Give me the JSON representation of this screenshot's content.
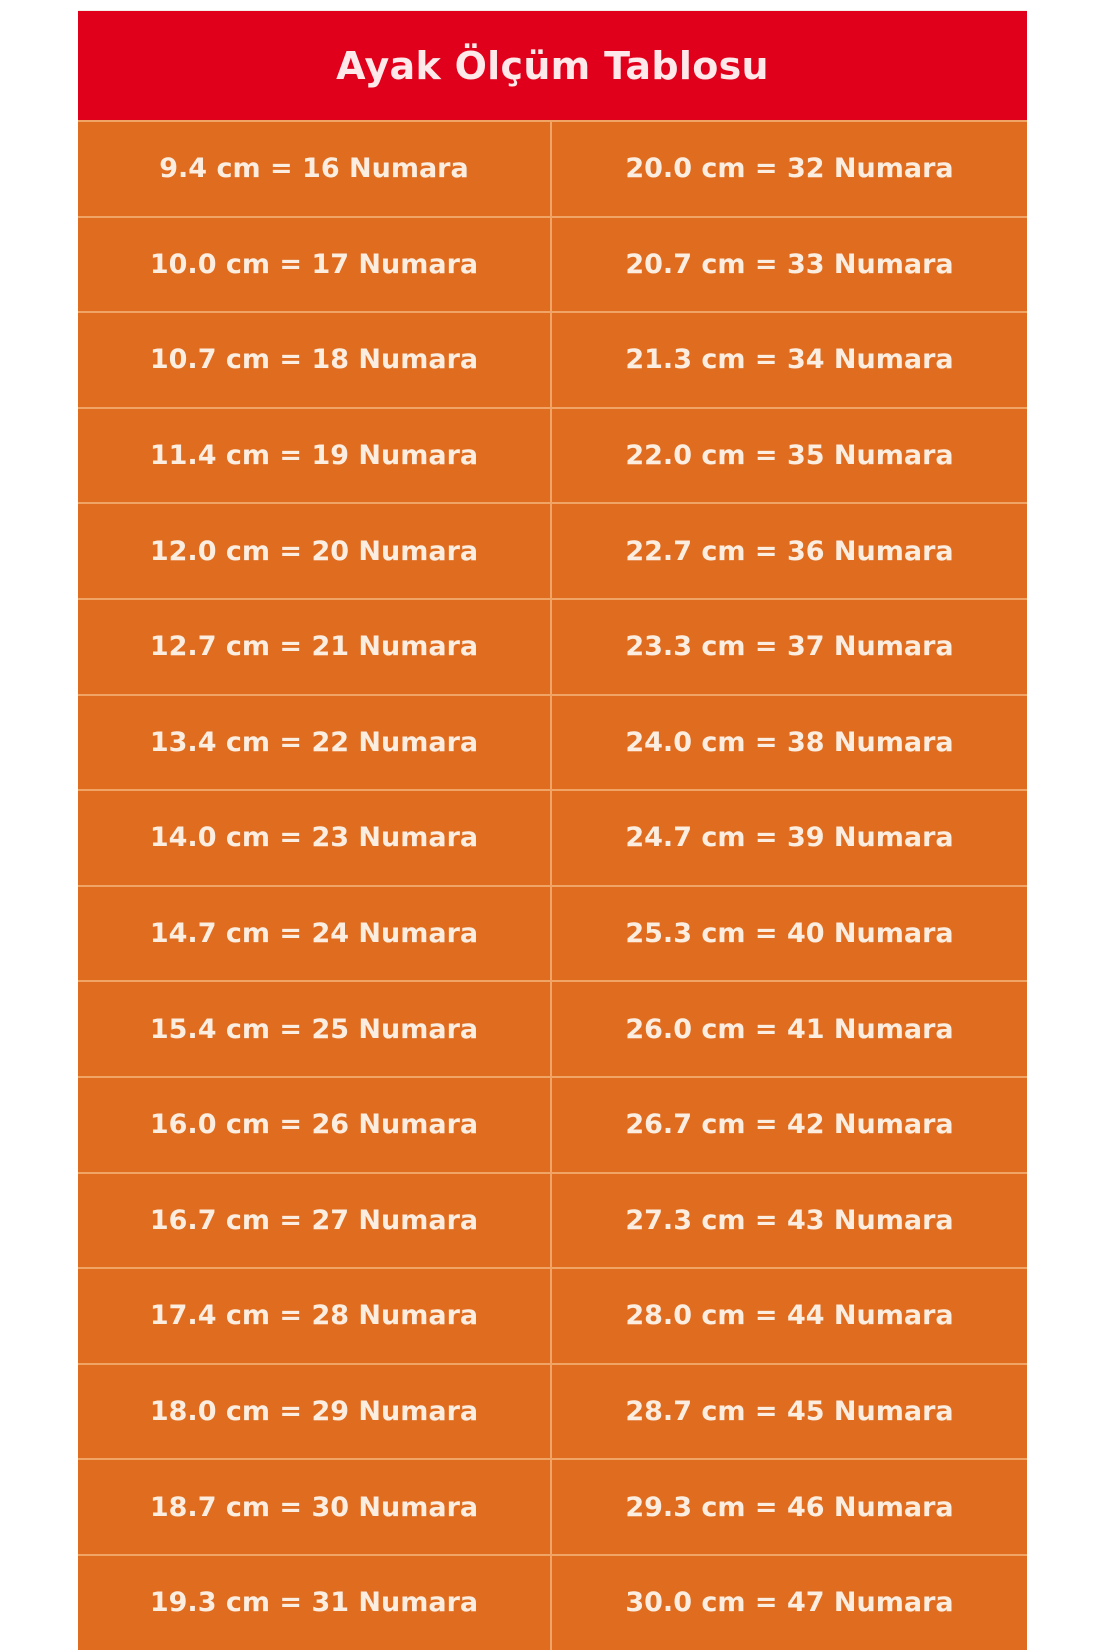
{
  "title": "Ayak Ölçüm Tablosu",
  "colors": {
    "header": "#e1001b",
    "table": "#e06c20",
    "text": "#fbeee0"
  },
  "left_column": [
    "9.4 cm = 16 Numara",
    "10.0 cm = 17 Numara",
    "10.7 cm = 18 Numara",
    "11.4 cm = 19 Numara",
    "12.0 cm = 20 Numara",
    "12.7 cm = 21 Numara",
    "13.4 cm = 22 Numara",
    "14.0 cm = 23 Numara",
    "14.7 cm = 24 Numara",
    "15.4 cm = 25 Numara",
    "16.0 cm = 26 Numara",
    "16.7 cm = 27 Numara",
    "17.4 cm = 28 Numara",
    "18.0 cm = 29 Numara",
    "18.7 cm = 30 Numara",
    "19.3 cm = 31 Numara"
  ],
  "right_column": [
    "20.0 cm = 32 Numara",
    "20.7 cm = 33 Numara",
    "21.3 cm = 34 Numara",
    "22.0 cm = 35 Numara",
    "22.7 cm = 36 Numara",
    "23.3 cm = 37 Numara",
    "24.0 cm = 38 Numara",
    "24.7 cm = 39 Numara",
    "25.3 cm = 40 Numara",
    "26.0 cm = 41 Numara",
    "26.7 cm = 42 Numara",
    "27.3 cm = 43 Numara",
    "28.0 cm = 44 Numara",
    "28.7 cm = 45 Numara",
    "29.3 cm = 46 Numara",
    "30.0 cm = 47 Numara"
  ]
}
